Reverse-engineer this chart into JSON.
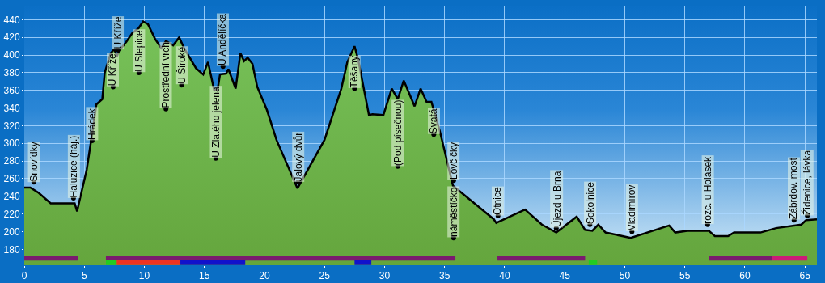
{
  "chart_data": {
    "type": "area",
    "series": [
      {
        "color": "#77c25a",
        "x": [
          0,
          0.5,
          1.2,
          2.2,
          4.2,
          4.4,
          4.6,
          5.2,
          5.7,
          6.0,
          6.5,
          6.7,
          7.2,
          7.5,
          7.7,
          7.9,
          8.5,
          9.0,
          9.5,
          9.9,
          10.3,
          10.9,
          11.4,
          11.8,
          12.4,
          12.9,
          13.3,
          14.3,
          14.9,
          15.3,
          15.8,
          16.1,
          16.3,
          16.8,
          17.0,
          17.6,
          18.0,
          18.3,
          18.6,
          19.0,
          19.4,
          20.2,
          21.0,
          22.75,
          25.0,
          26.4,
          26.9,
          27.5,
          27.8,
          28.7,
          29.0,
          29.9,
          30.6,
          31.1,
          31.6,
          32.5,
          33.0,
          33.5,
          33.9,
          34.6,
          35.7,
          39.1,
          39.3,
          41.7,
          43.1,
          44.3,
          46.0,
          46.7,
          47.3,
          47.8,
          48.4,
          50.5,
          53.7,
          54.2,
          55.2,
          57.0,
          57.5,
          58.6,
          59.1,
          61.3,
          62.6,
          64.7,
          65.1,
          66.0
        ],
        "values": [
          250,
          250,
          244,
          232,
          232,
          223,
          235,
          270,
          315,
          344,
          350,
          380,
          402,
          407,
          398,
          405,
          415,
          425,
          430,
          438,
          435,
          418,
          408,
          416,
          411,
          420,
          408,
          385,
          378,
          392,
          361,
          361,
          378,
          379,
          384,
          362,
          402,
          393,
          397,
          390,
          364,
          338,
          304,
          249,
          304,
          362,
          392,
          410,
          395,
          332,
          333,
          332,
          362,
          350,
          371,
          342,
          362,
          347,
          347,
          314,
          252,
          214,
          210,
          225,
          208,
          199,
          217,
          202,
          201,
          208,
          199,
          193,
          207,
          199,
          201,
          201,
          195,
          195,
          199,
          199,
          204,
          208,
          213,
          214
        ]
      },
      {
        "type": "line",
        "color": "#7a1a6e",
        "x": [
          0,
          4.5,
          5,
          6.8,
          35.9,
          37,
          39.4,
          46.7,
          50,
          57,
          62.3
        ],
        "values": [
          170,
          170,
          null,
          170,
          170,
          null,
          170,
          170,
          null,
          170,
          170
        ]
      },
      {
        "type": "line",
        "color": "#cc1a78",
        "x": [
          62.3,
          65.2
        ],
        "values": [
          170,
          170
        ]
      },
      {
        "type": "line",
        "color": "#22cc22",
        "x": [
          6.8,
          7.7,
          8,
          47.0,
          47.7
        ],
        "values": [
          165,
          165,
          null,
          165,
          165
        ]
      },
      {
        "type": "line",
        "color": "#ee3322",
        "x": [
          7.7,
          13.0
        ],
        "values": [
          165,
          165
        ]
      },
      {
        "type": "line",
        "color": "#1111cc",
        "x": [
          13.0,
          18.4,
          20,
          27.5,
          28.9
        ],
        "values": [
          165,
          165,
          null,
          165,
          165
        ]
      },
      {
        "type": "scatter",
        "color": "#000000",
        "x": [
          0.8,
          4.1,
          5.65,
          7.4,
          7.75,
          9.55,
          11.8,
          13.1,
          15.95,
          16.55,
          22.8,
          27.5,
          31.1,
          34.1,
          35.75,
          35.75,
          39.45,
          44.3,
          47.1,
          50.6,
          56.9,
          64.1,
          65.2
        ],
        "values": [
          256,
          238,
          303,
          364,
          406,
          380,
          339,
          366,
          283,
          387,
          256,
          362,
          274,
          310,
          258,
          193,
          218,
          204,
          208,
          200,
          208,
          213,
          218
        ],
        "value_labels": [
          "Snovídky",
          "Haluzice (háj.)",
          "Hrádek",
          "U Kříže",
          "U Kříže",
          "U Slepice",
          "Prostřední vrch",
          "U Široké",
          "U Zlatého jelena",
          "U Andělíčka",
          "Jalový dvůr",
          "Těšany",
          "(Pod písečnou)",
          "Svatá",
          "Lovčičky",
          "náměstíčko",
          "Otnice",
          "Újezd u Brna",
          "Sokolnice",
          "Vladimírov",
          "rozc. u Holásek",
          "Zábrdov. most",
          "Židenice, lávka"
        ]
      }
    ],
    "xlim": [
      0,
      66
    ],
    "ylim": [
      162,
      455
    ],
    "xticks": [
      0,
      5,
      10,
      15,
      20,
      25,
      30,
      35,
      40,
      45,
      50,
      55,
      60,
      65
    ],
    "yticks": [
      180,
      200,
      220,
      240,
      260,
      280,
      300,
      320,
      340,
      360,
      380,
      400,
      420,
      440
    ],
    "grid": true
  }
}
